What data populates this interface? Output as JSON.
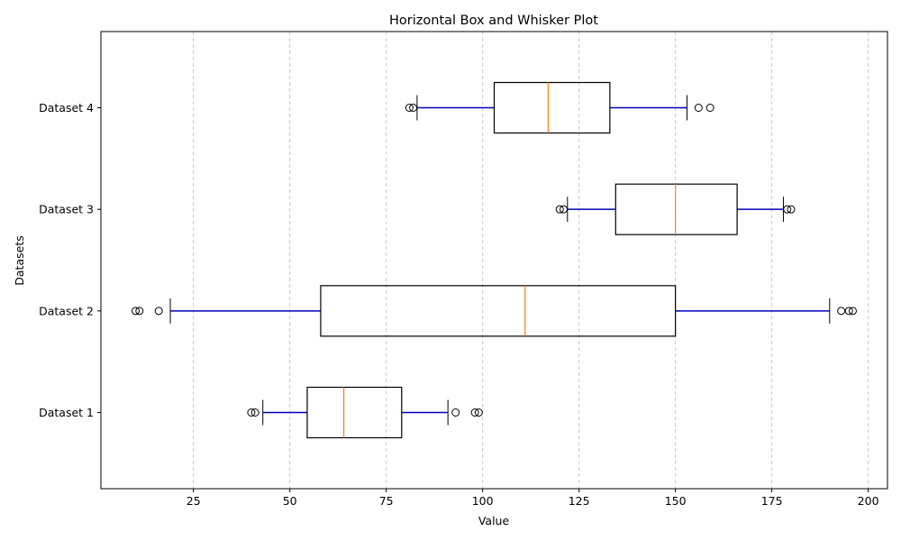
{
  "chart_data": {
    "type": "boxplot",
    "orientation": "horizontal",
    "title": "Horizontal Box and Whisker Plot",
    "xlabel": "Value",
    "ylabel": "Datasets",
    "xlim": [
      1,
      205
    ],
    "xticks": [
      25,
      50,
      75,
      100,
      125,
      150,
      175,
      200
    ],
    "grid": "x-axis dashed",
    "colors": {
      "box": "#000000",
      "median": "#ff7f0e",
      "whisker": "#0000bb",
      "grid": "#c8c8c8"
    },
    "series": [
      {
        "name": "Dataset 1",
        "whisker_low": 43,
        "q1": 54.5,
        "median": 64,
        "q3": 79,
        "whisker_high": 91,
        "outliers": [
          40,
          41,
          93,
          98,
          99
        ]
      },
      {
        "name": "Dataset 2",
        "whisker_low": 19,
        "q1": 58,
        "median": 111,
        "q3": 150,
        "whisker_high": 190,
        "outliers": [
          10,
          11,
          16,
          193,
          195,
          196
        ]
      },
      {
        "name": "Dataset 3",
        "whisker_low": 122,
        "q1": 134.5,
        "median": 150,
        "q3": 166,
        "whisker_high": 178,
        "outliers": [
          120,
          121,
          179,
          180
        ]
      },
      {
        "name": "Dataset 4",
        "whisker_low": 83,
        "q1": 103,
        "median": 117,
        "q3": 133,
        "whisker_high": 153,
        "outliers": [
          81,
          82,
          156,
          159
        ]
      }
    ]
  }
}
